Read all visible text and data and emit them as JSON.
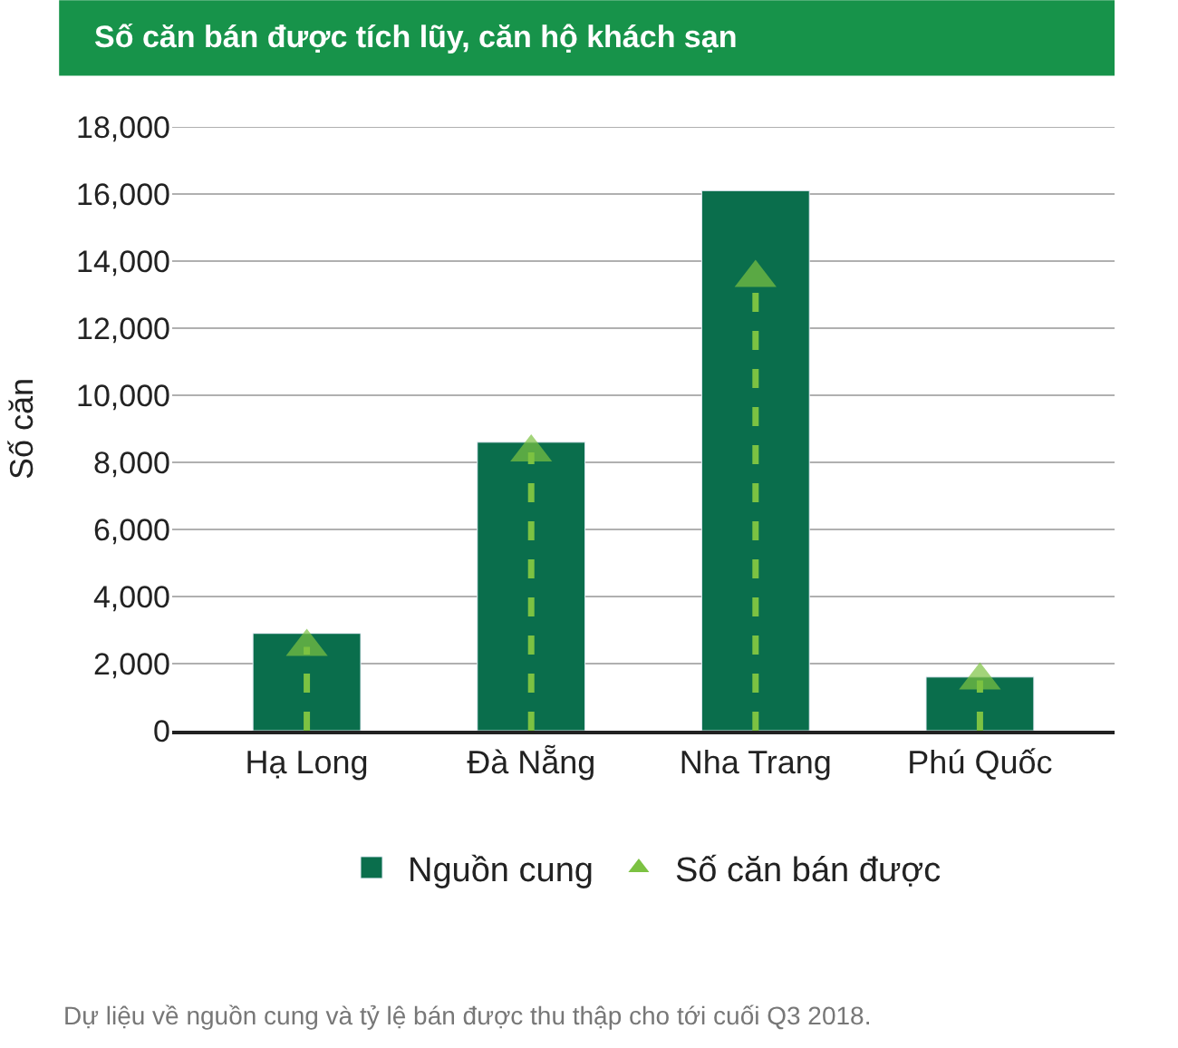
{
  "chart_data": {
    "type": "bar",
    "title": "Số căn bán được tích lũy, căn hộ khách sạn",
    "ylabel": "Số căn",
    "categories": [
      "Hạ Long",
      "Đà Nẵng",
      "Nha Trang",
      "Phú Quốc"
    ],
    "series": [
      {
        "name": "Nguồn cung",
        "color": "#0a6e4c",
        "values": [
          2900,
          8600,
          16100,
          1600
        ]
      },
      {
        "name": "Số căn bán được",
        "type": "scatter",
        "marker": "triangle",
        "line_style": "dashed",
        "color": "#7cc242",
        "values": [
          2500,
          8300,
          13500,
          1500
        ]
      }
    ],
    "ylim": [
      0,
      18000
    ],
    "yticks": [
      {
        "value": 0,
        "label": "0"
      },
      {
        "value": 2000,
        "label": "2,000"
      },
      {
        "value": 4000,
        "label": "4,000"
      },
      {
        "value": 6000,
        "label": "6,000"
      },
      {
        "value": 8000,
        "label": "8,000"
      },
      {
        "value": 10000,
        "label": "10,000"
      },
      {
        "value": 12000,
        "label": "12,000"
      },
      {
        "value": 14000,
        "label": "14,000"
      },
      {
        "value": 16000,
        "label": "16,000"
      },
      {
        "value": 18000,
        "label": "18,000"
      }
    ],
    "grid": "y",
    "legend": "bottom",
    "annotations": [
      "Dự liệu về nguồn cung và tỷ lệ bán được thu thập cho tới cuối Q3 2018."
    ]
  }
}
